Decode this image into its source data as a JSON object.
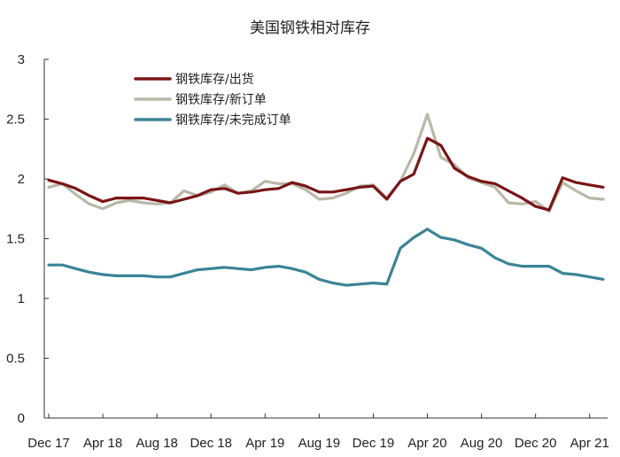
{
  "chart_data": {
    "type": "line",
    "title": "美国钢铁相对库存",
    "xlabel": "",
    "ylabel": "",
    "ylim": [
      0,
      3
    ],
    "yticks": [
      "0",
      "0.5",
      "1",
      "1.5",
      "2",
      "2.5",
      "3"
    ],
    "xtick_labels": [
      "Dec 17",
      "Apr 18",
      "Aug 18",
      "Dec 18",
      "Apr 19",
      "Aug 19",
      "Dec 19",
      "Apr 20",
      "Aug 20",
      "Dec 20",
      "Apr 21"
    ],
    "legend_position": "top-left",
    "grid": false,
    "x": [
      "2017-12",
      "2018-01",
      "2018-02",
      "2018-03",
      "2018-04",
      "2018-05",
      "2018-06",
      "2018-07",
      "2018-08",
      "2018-09",
      "2018-10",
      "2018-11",
      "2018-12",
      "2019-01",
      "2019-02",
      "2019-03",
      "2019-04",
      "2019-05",
      "2019-06",
      "2019-07",
      "2019-08",
      "2019-09",
      "2019-10",
      "2019-11",
      "2019-12",
      "2020-01",
      "2020-02",
      "2020-03",
      "2020-04",
      "2020-05",
      "2020-06",
      "2020-07",
      "2020-08",
      "2020-09",
      "2020-10",
      "2020-11",
      "2020-12",
      "2021-01",
      "2021-02",
      "2021-03",
      "2021-04",
      "2021-05"
    ],
    "series": [
      {
        "name": "钢铁库存/出货",
        "color": "#7a1416",
        "values": [
          1.99,
          1.96,
          1.92,
          1.86,
          1.81,
          1.84,
          1.84,
          1.84,
          1.82,
          1.8,
          1.83,
          1.86,
          1.91,
          1.92,
          1.88,
          1.89,
          1.91,
          1.92,
          1.97,
          1.94,
          1.89,
          1.89,
          1.91,
          1.93,
          1.94,
          1.83,
          1.98,
          2.04,
          2.34,
          2.28,
          2.09,
          2.02,
          1.98,
          1.96,
          1.9,
          1.84,
          1.77,
          1.74,
          2.01,
          1.97,
          1.95,
          1.93
        ]
      },
      {
        "name": "钢铁库存/新订单",
        "color": "#b9b8a8",
        "values": [
          1.93,
          1.96,
          1.87,
          1.79,
          1.75,
          1.8,
          1.82,
          1.8,
          1.79,
          1.8,
          1.9,
          1.86,
          1.89,
          1.95,
          1.88,
          1.9,
          1.98,
          1.96,
          1.96,
          1.91,
          1.83,
          1.84,
          1.88,
          1.94,
          1.95,
          1.84,
          1.98,
          2.21,
          2.54,
          2.18,
          2.12,
          2.01,
          1.97,
          1.93,
          1.8,
          1.79,
          1.81,
          1.73,
          1.97,
          1.9,
          1.84,
          1.83
        ]
      },
      {
        "name": "钢铁库存/未完成订单",
        "color": "#3b8496",
        "values": [
          1.28,
          1.28,
          1.25,
          1.22,
          1.2,
          1.19,
          1.19,
          1.19,
          1.18,
          1.18,
          1.21,
          1.24,
          1.25,
          1.26,
          1.25,
          1.24,
          1.26,
          1.27,
          1.25,
          1.22,
          1.16,
          1.13,
          1.11,
          1.12,
          1.13,
          1.12,
          1.42,
          1.51,
          1.58,
          1.51,
          1.49,
          1.45,
          1.42,
          1.34,
          1.29,
          1.27,
          1.27,
          1.27,
          1.21,
          1.2,
          1.18,
          1.16
        ]
      }
    ]
  }
}
